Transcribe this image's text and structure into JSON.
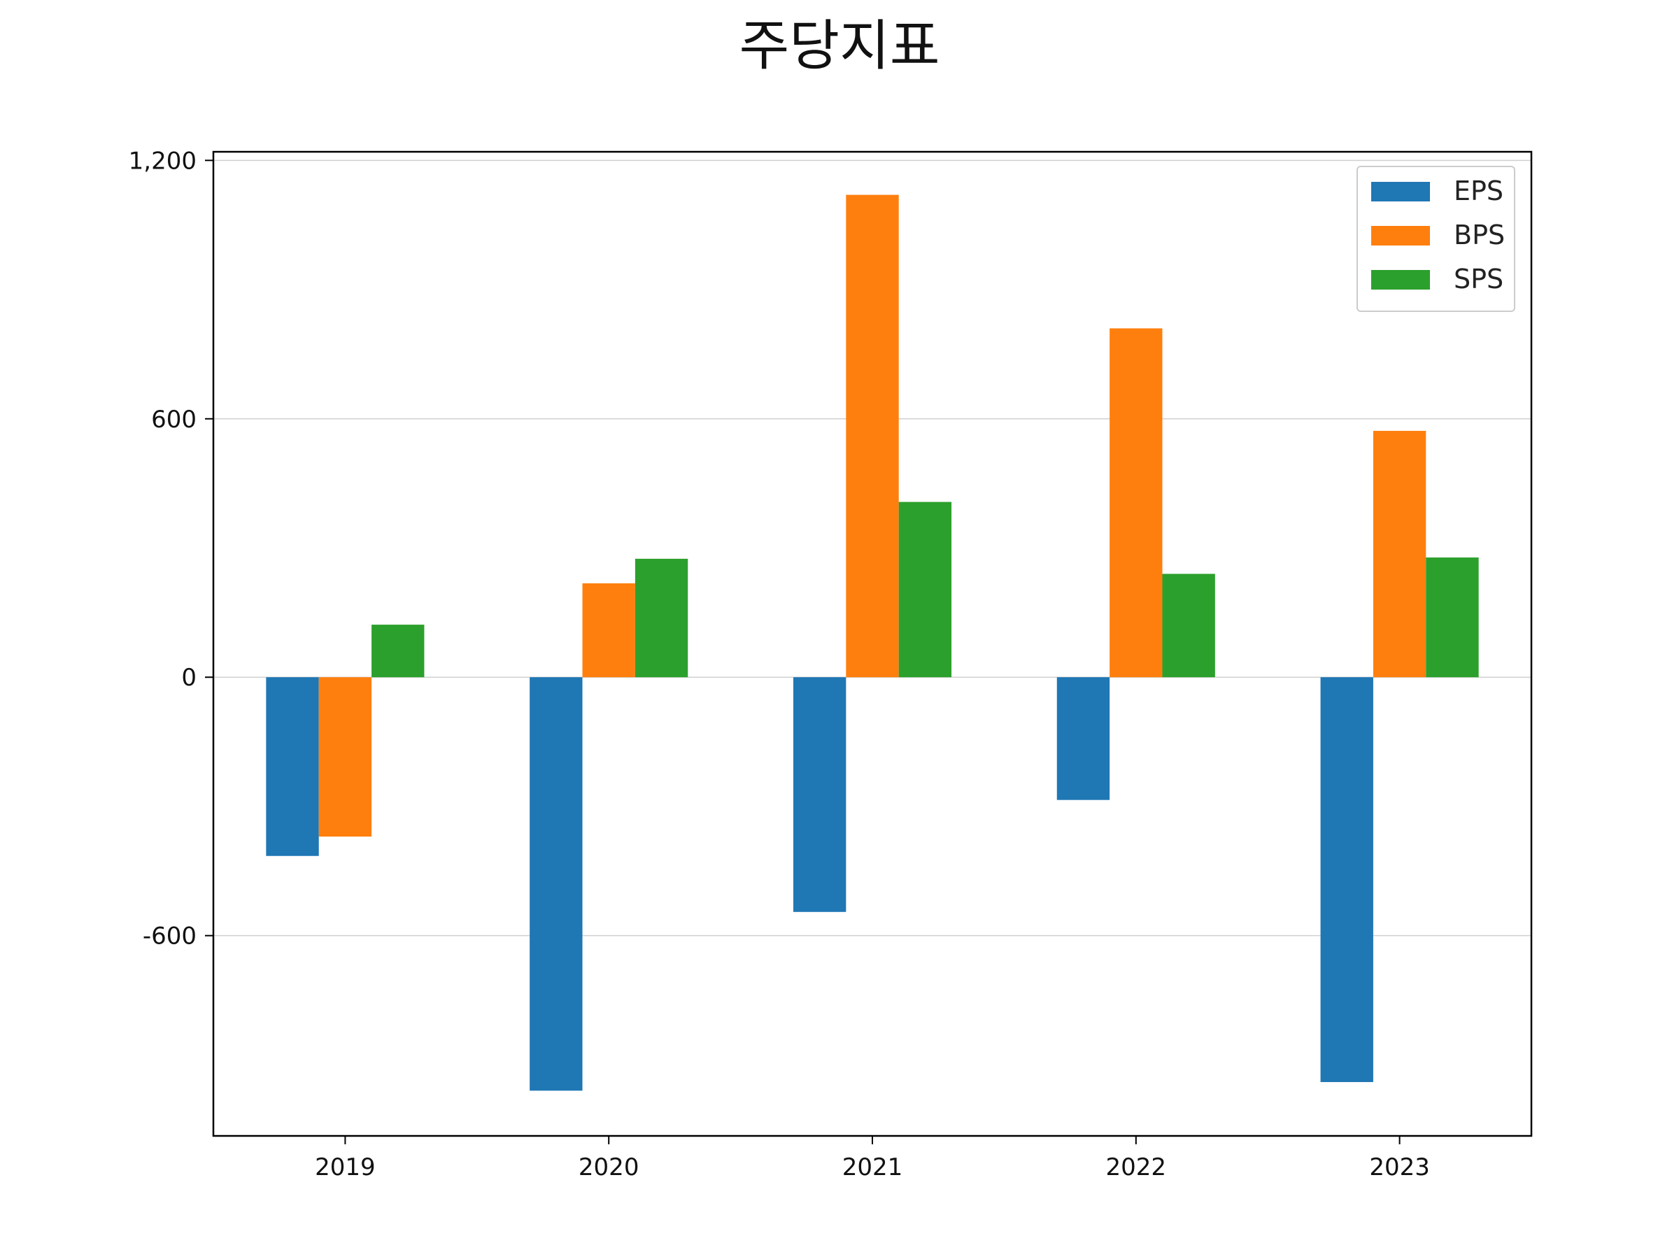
{
  "chart_data": {
    "type": "bar",
    "title": "주당지표",
    "xlabel": "",
    "ylabel": "",
    "categories": [
      "2019",
      "2020",
      "2021",
      "2022",
      "2023"
    ],
    "series": [
      {
        "name": "EPS",
        "color": "#1f77b4",
        "values": [
          -415,
          -960,
          -545,
          -285,
          -940
        ]
      },
      {
        "name": "BPS",
        "color": "#ff7f0e",
        "values": [
          -370,
          218,
          1120,
          810,
          572
        ]
      },
      {
        "name": "SPS",
        "color": "#2ca02c",
        "values": [
          122,
          275,
          407,
          240,
          278
        ]
      }
    ],
    "ylim": [
      -1065,
      1220
    ],
    "yticks": [
      -600,
      0,
      600,
      1200
    ],
    "ytick_labels": [
      "-600",
      "0",
      "600",
      "1,200"
    ],
    "grid": "horizontal",
    "legend_position": "top-right"
  }
}
